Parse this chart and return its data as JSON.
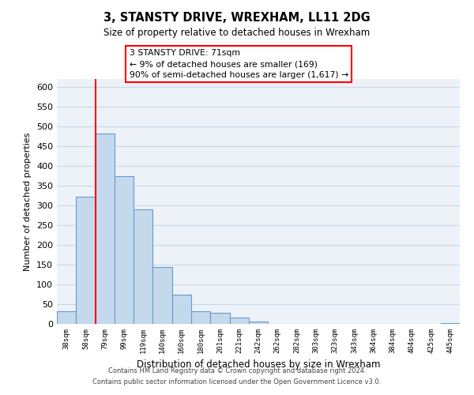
{
  "title": "3, STANSTY DRIVE, WREXHAM, LL11 2DG",
  "subtitle": "Size of property relative to detached houses in Wrexham",
  "xlabel": "Distribution of detached houses by size in Wrexham",
  "ylabel": "Number of detached properties",
  "bar_labels": [
    "38sqm",
    "58sqm",
    "79sqm",
    "99sqm",
    "119sqm",
    "140sqm",
    "160sqm",
    "180sqm",
    "201sqm",
    "221sqm",
    "242sqm",
    "262sqm",
    "282sqm",
    "303sqm",
    "323sqm",
    "343sqm",
    "364sqm",
    "384sqm",
    "404sqm",
    "425sqm",
    "445sqm"
  ],
  "bar_values": [
    32,
    322,
    482,
    375,
    291,
    144,
    75,
    32,
    29,
    16,
    7,
    1,
    0,
    0,
    0,
    0,
    0,
    0,
    0,
    0,
    3
  ],
  "bar_color": "#c5d9ed",
  "bar_edge_color": "#6699cc",
  "annotation_line1": "3 STANSTY DRIVE: 71sqm",
  "annotation_line2": "← 9% of detached houses are smaller (169)",
  "annotation_line3": "90% of semi-detached houses are larger (1,617) →",
  "ylim": [
    0,
    620
  ],
  "yticks": [
    0,
    50,
    100,
    150,
    200,
    250,
    300,
    350,
    400,
    450,
    500,
    550,
    600
  ],
  "footer_line1": "Contains HM Land Registry data © Crown copyright and database right 2024.",
  "footer_line2": "Contains public sector information licensed under the Open Government Licence v3.0.",
  "background_color": "#edf2f8",
  "grid_color": "#c8d8e8"
}
